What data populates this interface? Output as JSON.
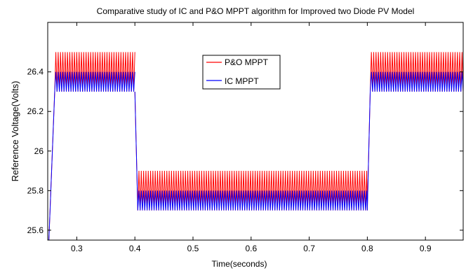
{
  "chart_data": {
    "type": "line",
    "title": "Comparative study of IC and P&O MPPT algorithm for Improved two Diode PV  Model",
    "xlabel": "Time(seconds)",
    "ylabel": "Reference Voltage(Volts)",
    "xlim": [
      0.25,
      0.965
    ],
    "ylim": [
      25.55,
      26.65
    ],
    "xticks": [
      0.3,
      0.4,
      0.5,
      0.6,
      0.7,
      0.8,
      0.9
    ],
    "xtick_labels": [
      "0.3",
      "0.4",
      "0.5",
      "0.6",
      "0.7",
      "0.8",
      "0.9"
    ],
    "yticks": [
      25.6,
      25.8,
      26.0,
      26.2,
      26.4
    ],
    "ytick_labels": [
      "25.6",
      "25.8",
      "26",
      "26.2",
      "26.4"
    ],
    "grid": false,
    "legend_position": "upper-center",
    "series": [
      {
        "name": "P&O MPPT",
        "color": "#ff0000",
        "oscillation_period": 0.004,
        "segments": [
          {
            "x_start": 0.262,
            "x_end": 0.4,
            "low": 26.3,
            "high": 26.5
          },
          {
            "x_start": 0.405,
            "x_end": 0.8,
            "low": 25.7,
            "high": 25.9
          },
          {
            "x_start": 0.805,
            "x_end": 0.965,
            "low": 26.3,
            "high": 26.5
          }
        ],
        "transients": [
          {
            "from_x": 0.252,
            "from_y": 25.55,
            "to_x": 0.262,
            "to_y": 26.3
          },
          {
            "from_x": 0.4,
            "from_y": 26.3,
            "to_x": 0.405,
            "to_y": 25.7
          },
          {
            "from_x": 0.8,
            "from_y": 25.7,
            "to_x": 0.805,
            "to_y": 26.3
          }
        ]
      },
      {
        "name": "IC MPPT",
        "color": "#0000ff",
        "oscillation_period": 0.004,
        "segments": [
          {
            "x_start": 0.262,
            "x_end": 0.4,
            "low": 26.3,
            "high": 26.4
          },
          {
            "x_start": 0.405,
            "x_end": 0.8,
            "low": 25.7,
            "high": 25.8
          },
          {
            "x_start": 0.805,
            "x_end": 0.965,
            "low": 26.3,
            "high": 26.4
          }
        ],
        "transients": [
          {
            "from_x": 0.252,
            "from_y": 25.55,
            "to_x": 0.262,
            "to_y": 26.3
          },
          {
            "from_x": 0.4,
            "from_y": 26.3,
            "to_x": 0.405,
            "to_y": 25.7
          },
          {
            "from_x": 0.8,
            "from_y": 25.7,
            "to_x": 0.805,
            "to_y": 26.3
          }
        ]
      }
    ]
  }
}
